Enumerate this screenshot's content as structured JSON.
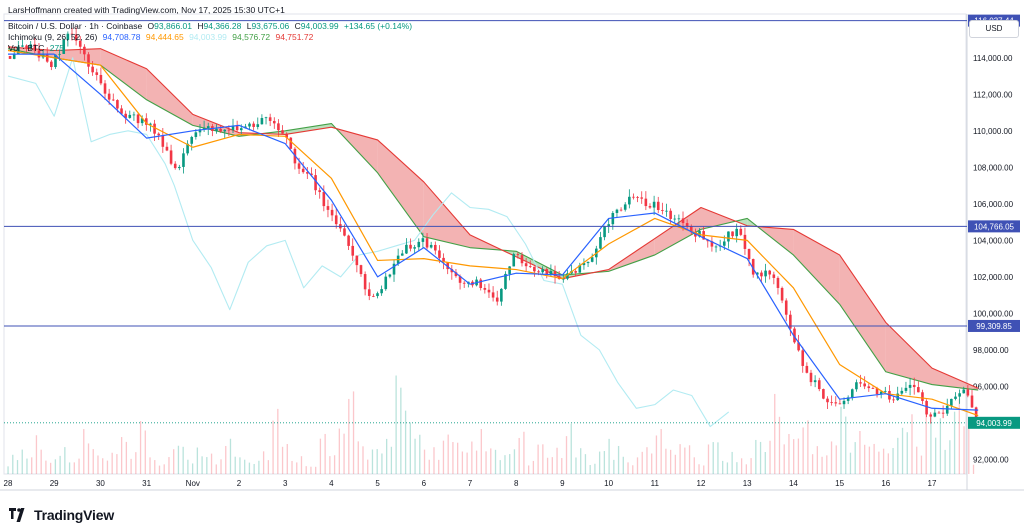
{
  "header": {
    "credit": "LarsHoffmann created with TradingView.com, Nov 17, 2025 15:30 UTC+1",
    "symbol": "Bitcoin / U.S. Dollar · 1h · Coinbase",
    "ohlc": [
      {
        "label": "O",
        "value": "93,866.01"
      },
      {
        "label": "H",
        "value": "94,366.28"
      },
      {
        "label": "L",
        "value": "93,675.06"
      },
      {
        "label": "C",
        "value": "94,003.99"
      }
    ],
    "change": "+134.65 (+0.14%)",
    "ichimoku_label": "Ichimoku (9, 26, 52, 26)",
    "ichimoku_values": [
      {
        "value": "94,708.78",
        "color": "#2962ff"
      },
      {
        "value": "94,444.65",
        "color": "#ff9800"
      },
      {
        "value": "94,003.99",
        "color": "#b2ebf2"
      },
      {
        "value": "94,576.72",
        "color": "#43a047"
      },
      {
        "value": "94,751.72",
        "color": "#e53935"
      }
    ],
    "vol_label": "Vol · BTC",
    "vol_value": "275"
  },
  "currency_button": "USD",
  "footer": {
    "brand": "TradingView"
  },
  "colors": {
    "up": "#089981",
    "down": "#f23645",
    "tenkan": "#2962ff",
    "kijun": "#ff9800",
    "chikou": "#b2ebf2",
    "span_a": "#43a047",
    "span_b": "#e53935",
    "cloud_bull": "#a5d6a7",
    "cloud_bear": "#ef9a9a",
    "hline": "#3f51b5"
  },
  "chart_data": {
    "type": "candlestick",
    "timeframe": "1h",
    "ylim": [
      91200,
      116400
    ],
    "y_ticks": [
      92000,
      94000,
      96000,
      98000,
      100000,
      102000,
      104000,
      106000,
      108000,
      110000,
      112000,
      114000
    ],
    "y_tick_labels": [
      "92,000.00",
      "94,000.00",
      "96,000.00",
      "98,000.00",
      "100,000.00",
      "102,000.00",
      "104,000.00",
      "106,000.00",
      "108,000.00",
      "110,000.00",
      "112,000.00",
      "114,000.00"
    ],
    "x_ticks": [
      "28",
      "29",
      "30",
      "31",
      "Nov",
      "2",
      "3",
      "4",
      "5",
      "6",
      "7",
      "8",
      "9",
      "10",
      "11",
      "12",
      "13",
      "14",
      "15",
      "16",
      "17"
    ],
    "horizontal_lines": [
      {
        "value": 116037.44,
        "label": "116,037.44"
      },
      {
        "value": 104766.05,
        "label": "104,766.05"
      },
      {
        "value": 99309.85,
        "label": "99,309.85"
      }
    ],
    "last_price": {
      "value": 94003.99,
      "label": "94,003.99"
    },
    "price_path": [
      [
        0,
        114100
      ],
      [
        0.5,
        114600
      ],
      [
        1,
        113600
      ],
      [
        1.4,
        115500
      ],
      [
        1.8,
        113500
      ],
      [
        2.2,
        112000
      ],
      [
        2.6,
        110800
      ],
      [
        3.0,
        110600
      ],
      [
        3.4,
        109300
      ],
      [
        3.7,
        107800
      ],
      [
        4.0,
        109600
      ],
      [
        4.4,
        110200
      ],
      [
        4.8,
        110000
      ],
      [
        5.2,
        110300
      ],
      [
        5.6,
        110600
      ],
      [
        6.0,
        109800
      ],
      [
        6.3,
        108200
      ],
      [
        6.6,
        107400
      ],
      [
        7.0,
        105500
      ],
      [
        7.3,
        104200
      ],
      [
        7.6,
        102800
      ],
      [
        7.9,
        100600
      ],
      [
        8.2,
        101800
      ],
      [
        8.6,
        103500
      ],
      [
        9.0,
        104000
      ],
      [
        9.4,
        103200
      ],
      [
        9.8,
        101800
      ],
      [
        10.2,
        101600
      ],
      [
        10.6,
        100600
      ],
      [
        11.0,
        103200
      ],
      [
        11.4,
        102400
      ],
      [
        11.8,
        102200
      ],
      [
        12.2,
        102000
      ],
      [
        12.6,
        102800
      ],
      [
        13.0,
        104800
      ],
      [
        13.4,
        106200
      ],
      [
        13.8,
        106100
      ],
      [
        14.1,
        105900
      ],
      [
        14.4,
        105400
      ],
      [
        14.7,
        104600
      ],
      [
        15.0,
        104300
      ],
      [
        15.3,
        103500
      ],
      [
        15.6,
        104300
      ],
      [
        15.9,
        104600
      ],
      [
        16.2,
        102000
      ],
      [
        16.5,
        102500
      ],
      [
        16.8,
        100900
      ],
      [
        17.0,
        98900
      ],
      [
        17.3,
        97000
      ],
      [
        17.7,
        95300
      ],
      [
        18.0,
        94800
      ],
      [
        18.4,
        96000
      ],
      [
        18.8,
        95800
      ],
      [
        19.2,
        95400
      ],
      [
        19.6,
        96200
      ],
      [
        20.0,
        94300
      ],
      [
        20.4,
        94900
      ],
      [
        20.6,
        95900
      ],
      [
        20.8,
        95700
      ],
      [
        21.0,
        94000
      ]
    ],
    "cloud": {
      "x": [
        0,
        1,
        2,
        3,
        4,
        5,
        6,
        7,
        8,
        9,
        10,
        11,
        12,
        13,
        14,
        15,
        16,
        17,
        18,
        19,
        20,
        21
      ],
      "span_a": [
        114500,
        114000,
        113600,
        111700,
        110300,
        109700,
        110000,
        110400,
        107700,
        104200,
        103600,
        103400,
        102100,
        102300,
        103200,
        104600,
        105200,
        103200,
        100500,
        96800,
        96100,
        95800
      ],
      "span_b": [
        114600,
        114400,
        114500,
        113400,
        110900,
        109900,
        109800,
        110200,
        109500,
        107200,
        104300,
        103100,
        101900,
        102400,
        104100,
        105800,
        104800,
        104600,
        103200,
        99500,
        97000,
        95900
      ]
    },
    "tenkan": [
      [
        0,
        114200
      ],
      [
        1,
        114200
      ],
      [
        2,
        112000
      ],
      [
        3,
        109600
      ],
      [
        4,
        110000
      ],
      [
        5,
        110300
      ],
      [
        6,
        109300
      ],
      [
        7,
        106200
      ],
      [
        8,
        102000
      ],
      [
        9,
        103600
      ],
      [
        10,
        101600
      ],
      [
        11,
        102200
      ],
      [
        12,
        102100
      ],
      [
        13,
        105200
      ],
      [
        14,
        105500
      ],
      [
        15,
        104200
      ],
      [
        16,
        103000
      ],
      [
        17,
        98800
      ],
      [
        18,
        95300
      ],
      [
        19,
        95600
      ],
      [
        20,
        94800
      ],
      [
        21,
        94700
      ]
    ],
    "kijun": [
      [
        0,
        114400
      ],
      [
        1,
        114000
      ],
      [
        2,
        113600
      ],
      [
        3,
        110400
      ],
      [
        4,
        109100
      ],
      [
        5,
        109800
      ],
      [
        6,
        109700
      ],
      [
        7,
        107400
      ],
      [
        8,
        102900
      ],
      [
        9,
        103000
      ],
      [
        10,
        102600
      ],
      [
        11,
        102400
      ],
      [
        12,
        101900
      ],
      [
        13,
        103800
      ],
      [
        14,
        105200
      ],
      [
        15,
        104300
      ],
      [
        16,
        104000
      ],
      [
        17,
        101400
      ],
      [
        18,
        97200
      ],
      [
        19,
        95600
      ],
      [
        20,
        95300
      ],
      [
        21,
        94400
      ]
    ],
    "chikou": [
      [
        0,
        113000
      ],
      [
        0.6,
        112600
      ],
      [
        1.0,
        110800
      ],
      [
        1.4,
        114000
      ],
      [
        1.8,
        109400
      ],
      [
        2.2,
        109800
      ],
      [
        2.6,
        110000
      ],
      [
        3.0,
        109800
      ],
      [
        3.4,
        108200
      ],
      [
        3.6,
        107000
      ],
      [
        4.0,
        104000
      ],
      [
        4.4,
        102500
      ],
      [
        4.8,
        100200
      ],
      [
        5.2,
        102800
      ],
      [
        5.6,
        103700
      ],
      [
        6.0,
        104000
      ],
      [
        6.4,
        101400
      ],
      [
        6.8,
        102600
      ],
      [
        7.2,
        102000
      ],
      [
        7.6,
        103200
      ],
      [
        8.0,
        103400
      ],
      [
        8.4,
        103700
      ],
      [
        8.8,
        104000
      ],
      [
        9.2,
        105400
      ],
      [
        9.6,
        106600
      ],
      [
        10.0,
        105800
      ],
      [
        10.4,
        105700
      ],
      [
        10.8,
        105300
      ],
      [
        11.2,
        103800
      ],
      [
        11.6,
        101800
      ],
      [
        12.0,
        101600
      ],
      [
        12.4,
        98800
      ],
      [
        12.8,
        98000
      ],
      [
        13.2,
        96200
      ],
      [
        13.6,
        94800
      ],
      [
        14.0,
        95000
      ],
      [
        14.4,
        95800
      ],
      [
        14.8,
        95500
      ],
      [
        15.2,
        93800
      ],
      [
        15.6,
        94600
      ]
    ],
    "volume": [
      0.12,
      0.2,
      0.15,
      0.3,
      0.1,
      0.22,
      0.18,
      0.14,
      0.28,
      0.19,
      0.11,
      0.16,
      0.24,
      0.13,
      0.35,
      0.1,
      0.09,
      0.2,
      0.17,
      0.12,
      0.25,
      0.14,
      0.1,
      0.3,
      0.22,
      0.15,
      0.12,
      0.18,
      0.45,
      0.2,
      0.16,
      0.12,
      0.1,
      0.28,
      0.14,
      0.35,
      0.5,
      0.22,
      0.18,
      0.3,
      0.25,
      0.62,
      0.4,
      0.3,
      0.2,
      0.18,
      0.28,
      0.22,
      0.14,
      0.2,
      0.32,
      0.16,
      0.12,
      0.2,
      0.26,
      0.1,
      0.18,
      0.14,
      0.22,
      0.3,
      0.18,
      0.12,
      0.16,
      0.24,
      0.2,
      0.14,
      0.1,
      0.18,
      0.26,
      0.3,
      0.22,
      0.34,
      0.18,
      0.12,
      0.28,
      0.2,
      0.16,
      0.1,
      0.14,
      0.24,
      0.3,
      0.5,
      0.36,
      0.25,
      0.4,
      0.3,
      0.22,
      0.28,
      0.45,
      0.32,
      0.26,
      0.2,
      0.35,
      0.28,
      0.3,
      0.4,
      0.25,
      0.45,
      0.38,
      0.3,
      0.5,
      0.42
    ]
  }
}
